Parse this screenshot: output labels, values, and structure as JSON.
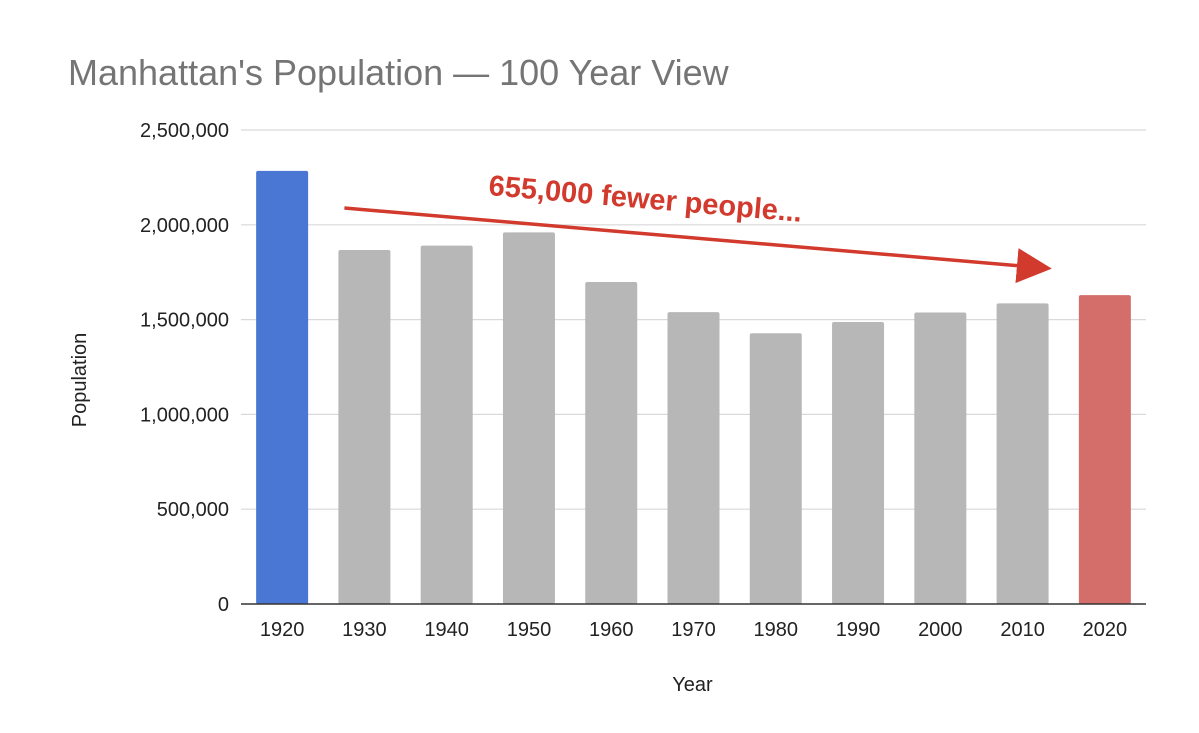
{
  "chart_data": {
    "type": "bar",
    "title": "Manhattan's Population — 100 Year View",
    "xlabel": "Year",
    "ylabel": "Population",
    "categories": [
      "1920",
      "1930",
      "1940",
      "1950",
      "1960",
      "1970",
      "1980",
      "1990",
      "2000",
      "2010",
      "2020"
    ],
    "values": [
      2284103,
      1867312,
      1889924,
      1960101,
      1698281,
      1539233,
      1428285,
      1487536,
      1537195,
      1585873,
      1629153
    ],
    "ylim": [
      0,
      2500000
    ],
    "yticks": [
      0,
      500000,
      1000000,
      1500000,
      2000000,
      2500000
    ],
    "ytick_labels": [
      "0",
      "500,000",
      "1,000,000",
      "1,500,000",
      "2,000,000",
      "2,500,000"
    ],
    "grid": true,
    "legend": "none",
    "colors": {
      "default_bar": "#b7b7b7",
      "highlight_first": "#4a76d4",
      "highlight_last": "#d36e6a",
      "grid": "#d9d9d9",
      "axis": "#333333",
      "annotation": "#d13a2c"
    },
    "annotation": {
      "text": "655,000 fewer people...",
      "arrow_from_category": "1930",
      "arrow_to_category": "2020"
    }
  }
}
